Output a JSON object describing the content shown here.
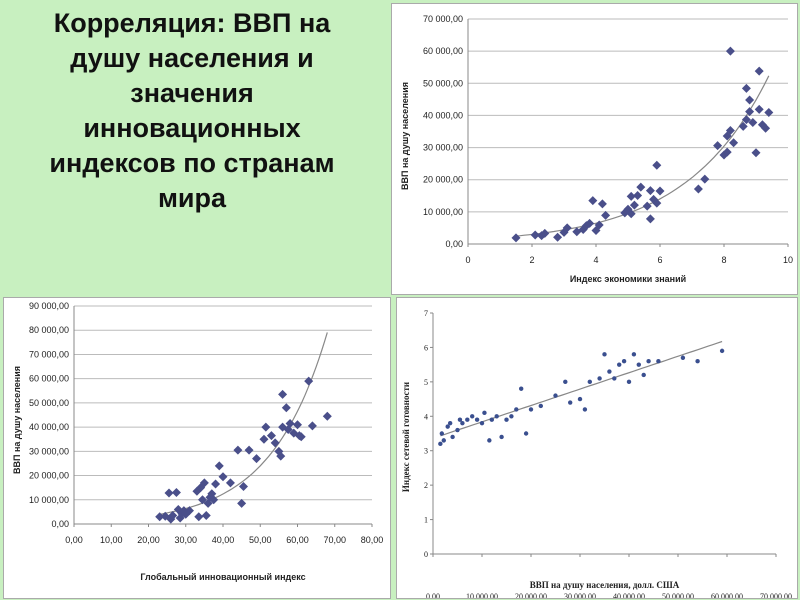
{
  "page": {
    "title": "Корреляция: ВВП на душу населения и значения инновационных индексов по странам мира",
    "title_lines": [
      "Корреляция: ВВП на",
      "душу населения и",
      "значения",
      "инновационных",
      "индексов по странам",
      "мира"
    ],
    "background": "#c8f0c0"
  },
  "chart_data": [
    {
      "type": "scatter",
      "xlabel": "Индекс экономики знаний",
      "ylabel": "ВВП на душу населения",
      "xlim": [
        0,
        10
      ],
      "ylim": [
        0,
        70000
      ],
      "x_ticks": [
        "0",
        "2",
        "4",
        "6",
        "8",
        "10"
      ],
      "y_ticks": [
        "0,00",
        "10 000,00",
        "20 000,00",
        "30 000,00",
        "40 000,00",
        "50 000,00",
        "60 000,00",
        "70 000,00"
      ],
      "grid": true,
      "trendline": "exponential",
      "marker_color": "#4a4f8a",
      "points": [
        [
          1.5,
          1900
        ],
        [
          2.1,
          2800
        ],
        [
          2.3,
          2600
        ],
        [
          2.4,
          3300
        ],
        [
          2.8,
          2100
        ],
        [
          3.0,
          3600
        ],
        [
          3.1,
          5000
        ],
        [
          3.4,
          3800
        ],
        [
          3.6,
          4500
        ],
        [
          3.7,
          5700
        ],
        [
          3.8,
          6400
        ],
        [
          3.9,
          13500
        ],
        [
          4.0,
          4200
        ],
        [
          4.1,
          5900
        ],
        [
          4.2,
          12500
        ],
        [
          4.3,
          8900
        ],
        [
          4.9,
          9700
        ],
        [
          5.0,
          10800
        ],
        [
          5.1,
          14800
        ],
        [
          5.1,
          9400
        ],
        [
          5.2,
          12100
        ],
        [
          5.3,
          15100
        ],
        [
          5.4,
          17700
        ],
        [
          5.6,
          11800
        ],
        [
          5.7,
          7800
        ],
        [
          5.7,
          16600
        ],
        [
          5.8,
          13900
        ],
        [
          5.9,
          12700
        ],
        [
          5.9,
          24500
        ],
        [
          6.0,
          16500
        ],
        [
          7.2,
          17100
        ],
        [
          7.4,
          20200
        ],
        [
          7.8,
          30600
        ],
        [
          8.0,
          27700
        ],
        [
          8.1,
          33600
        ],
        [
          8.1,
          28600
        ],
        [
          8.2,
          35300
        ],
        [
          8.2,
          60000
        ],
        [
          8.3,
          31500
        ],
        [
          8.6,
          36600
        ],
        [
          8.7,
          38700
        ],
        [
          8.7,
          48400
        ],
        [
          8.8,
          44800
        ],
        [
          8.8,
          41200
        ],
        [
          8.9,
          37800
        ],
        [
          9.0,
          28400
        ],
        [
          9.1,
          41900
        ],
        [
          9.1,
          53800
        ],
        [
          9.2,
          37100
        ],
        [
          9.3,
          36000
        ],
        [
          9.4,
          40900
        ]
      ]
    },
    {
      "type": "scatter",
      "xlabel": "Глобальный инновационный индекс",
      "ylabel": "ВВП на душу населения",
      "xlim": [
        0,
        80
      ],
      "ylim": [
        0,
        90000
      ],
      "x_ticks": [
        "0,00",
        "10,00",
        "20,00",
        "30,00",
        "40,00",
        "50,00",
        "60,00",
        "70,00",
        "80,00"
      ],
      "y_ticks": [
        "0,00",
        "10 000,00",
        "20 000,00",
        "30 000,00",
        "40 000,00",
        "50 000,00",
        "60 000,00",
        "70 000,00",
        "80 000,00",
        "90 000,00"
      ],
      "grid": true,
      "trendline": "exponential",
      "marker_color": "#4a4f8a",
      "points": [
        [
          23,
          3000
        ],
        [
          24.5,
          3200
        ],
        [
          25.5,
          12800
        ],
        [
          26,
          2000
        ],
        [
          26.5,
          3500
        ],
        [
          27.5,
          13000
        ],
        [
          28,
          6000
        ],
        [
          28.5,
          2500
        ],
        [
          29,
          4200
        ],
        [
          29.5,
          5500
        ],
        [
          30,
          4000
        ],
        [
          31,
          5500
        ],
        [
          33,
          13500
        ],
        [
          33.5,
          3000
        ],
        [
          34,
          15000
        ],
        [
          34.5,
          10000
        ],
        [
          35,
          17000
        ],
        [
          35.5,
          3500
        ],
        [
          36,
          8500
        ],
        [
          36.5,
          11000
        ],
        [
          37,
          12500
        ],
        [
          37.5,
          10000
        ],
        [
          38,
          16500
        ],
        [
          39,
          24000
        ],
        [
          40,
          19500
        ],
        [
          42,
          17000
        ],
        [
          44,
          30500
        ],
        [
          45,
          8500
        ],
        [
          45.5,
          15500
        ],
        [
          47,
          30500
        ],
        [
          49,
          27000
        ],
        [
          51,
          35000
        ],
        [
          51.5,
          40000
        ],
        [
          53,
          36500
        ],
        [
          54,
          33500
        ],
        [
          55,
          30000
        ],
        [
          55.5,
          28000
        ],
        [
          56,
          53500
        ],
        [
          56,
          40000
        ],
        [
          57,
          48000
        ],
        [
          57.5,
          39000
        ],
        [
          58,
          41500
        ],
        [
          59,
          37500
        ],
        [
          60,
          41000
        ],
        [
          60.5,
          36500
        ],
        [
          61,
          36000
        ],
        [
          63,
          59000
        ],
        [
          64,
          40500
        ],
        [
          68,
          44500
        ]
      ]
    },
    {
      "type": "scatter",
      "xlabel": "ВВП на душу населения, долл. США",
      "ylabel": "Индекс сетевой готовности",
      "xlim": [
        0,
        70000
      ],
      "ylim": [
        0,
        7
      ],
      "x_ticks": [
        "0,00",
        "10 000,00",
        "20 000,00",
        "30 000,00",
        "40 000,00",
        "50 000,00",
        "60 000,00",
        "70 000,00"
      ],
      "y_ticks": [
        "0",
        "1",
        "2",
        "3",
        "4",
        "5",
        "6",
        "7"
      ],
      "grid": false,
      "trendline": "linear",
      "marker_color": "#3a4f8f",
      "points": [
        [
          1500,
          3.2
        ],
        [
          1800,
          3.5
        ],
        [
          2200,
          3.3
        ],
        [
          3000,
          3.7
        ],
        [
          3500,
          3.8
        ],
        [
          4000,
          3.4
        ],
        [
          5000,
          3.6
        ],
        [
          5500,
          3.9
        ],
        [
          6000,
          3.8
        ],
        [
          7000,
          3.9
        ],
        [
          8000,
          4.0
        ],
        [
          9000,
          3.9
        ],
        [
          10000,
          3.8
        ],
        [
          10500,
          4.1
        ],
        [
          11500,
          3.3
        ],
        [
          12000,
          3.9
        ],
        [
          13000,
          4.0
        ],
        [
          14000,
          3.4
        ],
        [
          15000,
          3.9
        ],
        [
          16000,
          4.0
        ],
        [
          17000,
          4.2
        ],
        [
          18000,
          4.8
        ],
        [
          19000,
          3.5
        ],
        [
          20000,
          4.2
        ],
        [
          22000,
          4.3
        ],
        [
          25000,
          4.6
        ],
        [
          27000,
          5.0
        ],
        [
          28000,
          4.4
        ],
        [
          30000,
          4.5
        ],
        [
          31000,
          4.2
        ],
        [
          32000,
          5.0
        ],
        [
          34000,
          5.1
        ],
        [
          35000,
          5.8
        ],
        [
          36000,
          5.3
        ],
        [
          37000,
          5.1
        ],
        [
          38000,
          5.5
        ],
        [
          39000,
          5.6
        ],
        [
          40000,
          5.0
        ],
        [
          41000,
          5.8
        ],
        [
          42000,
          5.5
        ],
        [
          43000,
          5.2
        ],
        [
          44000,
          5.6
        ],
        [
          46000,
          5.6
        ],
        [
          51000,
          5.7
        ],
        [
          54000,
          5.6
        ],
        [
          59000,
          5.9
        ]
      ]
    }
  ]
}
